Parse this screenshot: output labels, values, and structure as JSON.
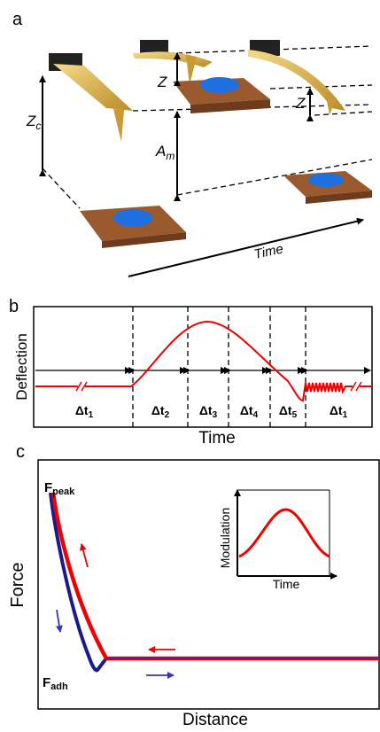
{
  "panel_a": {
    "label": "a",
    "zc": {
      "symbol": "Z",
      "sub": "c"
    },
    "z_top": "Z",
    "am": {
      "symbol": "A",
      "sub": "m"
    },
    "z_right": "Z",
    "time": "Time"
  },
  "panel_b": {
    "label": "b",
    "y_label": "Deflection",
    "x_label": "Time",
    "intervals": [
      {
        "symbol": "Δt",
        "sub": "1"
      },
      {
        "symbol": "Δt",
        "sub": "2"
      },
      {
        "symbol": "Δt",
        "sub": "3"
      },
      {
        "symbol": "Δt",
        "sub": "4"
      },
      {
        "symbol": "Δt",
        "sub": "5"
      },
      {
        "symbol": "Δt",
        "sub": "1"
      }
    ]
  },
  "panel_c": {
    "label": "c",
    "y_label": "Force",
    "x_label": "Distance",
    "f_peak": {
      "symbol": "F",
      "sub": "peak"
    },
    "f_adh": {
      "symbol": "F",
      "sub": "adh"
    },
    "inset": {
      "y_label": "Modulation",
      "x_label": "Time"
    }
  }
}
